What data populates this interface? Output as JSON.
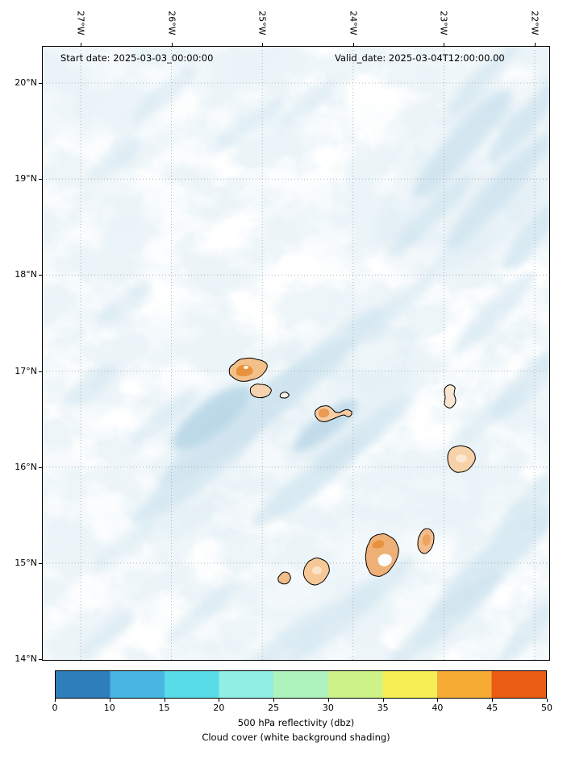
{
  "header": {
    "start_date": "Start date: 2025-03-03_00:00:00",
    "valid_date": "Valid_date: 2025-03-04T12:00:00.00"
  },
  "axes": {
    "x_ticks": [
      "27°W",
      "26°W",
      "25°W",
      "24°W",
      "23°W",
      "22°W"
    ],
    "y_ticks": [
      "20°N",
      "19°N",
      "18°N",
      "17°N",
      "16°N",
      "15°N",
      "14°N"
    ]
  },
  "colorbar": {
    "ticks": [
      "0",
      "10",
      "15",
      "20",
      "25",
      "30",
      "35",
      "40",
      "45",
      "50"
    ],
    "colors": [
      "#2e7ebc",
      "#47b6e1",
      "#58dce8",
      "#90efe3",
      "#aef2bd",
      "#cdf287",
      "#f5ee55",
      "#f6ab35",
      "#e95d14"
    ],
    "title": "500 hPa reflectivity (dbz)",
    "subtitle": "Cloud cover (white background shading)"
  },
  "palette": {
    "cloud": "#cfe4ef",
    "cloud_deep": "#b9d7e7",
    "island": "#f6cda4",
    "island_dark": "#e8923f",
    "island_light": "#f9e6d2",
    "outline": "#000000",
    "grid": "#999999"
  },
  "chart_data": {
    "type": "heatmap",
    "title": "500 hPa reflectivity (dbz)",
    "subtitle": "Cloud cover (white background shading)",
    "x_axis": {
      "tick_labels": [
        "27°W",
        "26°W",
        "25°W",
        "24°W",
        "23°W",
        "22°W"
      ]
    },
    "y_axis": {
      "tick_labels": [
        "20°N",
        "19°N",
        "18°N",
        "17°N",
        "16°N",
        "15°N",
        "14°N"
      ]
    },
    "extent_estimate": {
      "lon_deg_w": [
        27.45,
        21.85
      ],
      "lat_deg_n": [
        13.95,
        20.05
      ]
    },
    "grid": "dotted, 1-degree spacing",
    "colorbar": {
      "unit": "dbz",
      "boundaries": [
        0,
        10,
        15,
        20,
        25,
        30,
        35,
        40,
        45,
        50
      ],
      "spacing": "uniform",
      "colors": [
        "#2e7ebc",
        "#47b6e1",
        "#58dce8",
        "#90efe3",
        "#aef2bd",
        "#cdf287",
        "#f5ee55",
        "#f6ab35",
        "#e95d14"
      ]
    },
    "reflectivity_cells": [
      {
        "lon_deg_w": 25.16,
        "lat_deg_n": 17.01,
        "approx_max_dbz": 45
      },
      {
        "lon_deg_w": 25.02,
        "lat_deg_n": 16.79,
        "approx_max_dbz": 40
      },
      {
        "lon_deg_w": 24.75,
        "lat_deg_n": 16.75,
        "approx_max_dbz": 35
      },
      {
        "lon_deg_w": 24.23,
        "lat_deg_n": 16.55,
        "approx_max_dbz": 42
      },
      {
        "lon_deg_w": 22.93,
        "lat_deg_n": 16.74,
        "approx_max_dbz": 37
      },
      {
        "lon_deg_w": 22.81,
        "lat_deg_n": 16.08,
        "approx_max_dbz": 40
      },
      {
        "lon_deg_w": 23.2,
        "lat_deg_n": 15.23,
        "approx_max_dbz": 42
      },
      {
        "lon_deg_w": 23.67,
        "lat_deg_n": 15.07,
        "approx_max_dbz": 45
      },
      {
        "lon_deg_w": 24.41,
        "lat_deg_n": 14.91,
        "approx_max_dbz": 43
      },
      {
        "lon_deg_w": 24.75,
        "lat_deg_n": 14.84,
        "approx_max_dbz": 40
      }
    ],
    "background_shading": "cloud cover as widespread very light blue shading with SW-NE oriented bands, denser in upper-right, central diagonal band through the island chain, and lower-right"
  }
}
